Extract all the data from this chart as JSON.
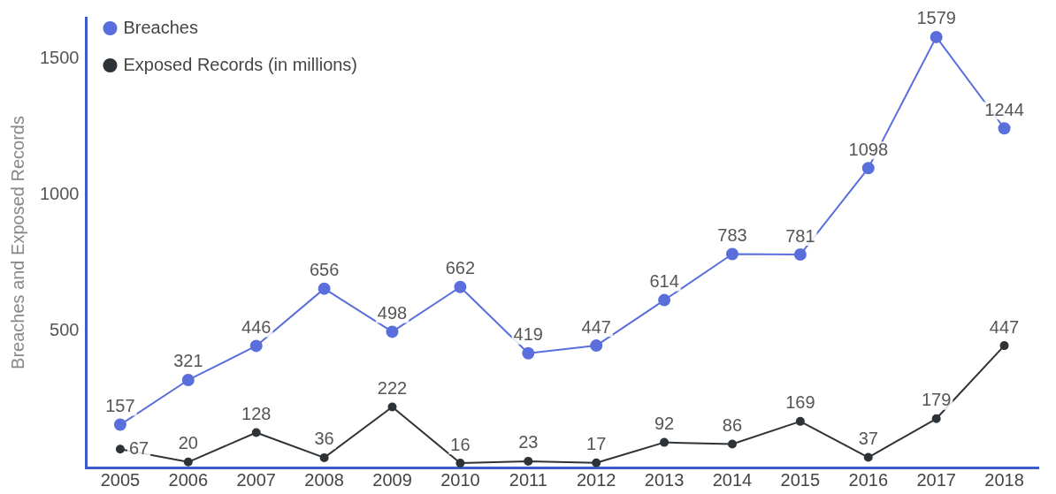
{
  "chart_data": {
    "type": "line",
    "ylabel": "Breaches and Exposed Records",
    "categories": [
      "2005",
      "2006",
      "2007",
      "2008",
      "2009",
      "2010",
      "2011",
      "2012",
      "2013",
      "2014",
      "2015",
      "2016",
      "2017",
      "2018"
    ],
    "series": [
      {
        "name": "Breaches",
        "color": "#5a6fdc",
        "values": [
          157,
          321,
          446,
          656,
          498,
          662,
          419,
          447,
          614,
          783,
          781,
          1098,
          1579,
          1244
        ]
      },
      {
        "name": "Exposed Records (in millions)",
        "color": "#2e3338",
        "values": [
          67,
          20,
          128,
          36,
          222,
          16,
          23,
          17,
          92,
          86,
          169,
          37,
          179,
          447
        ]
      }
    ],
    "ylim": [
      0,
      1650
    ],
    "yticks": [
      500,
      1000,
      1500
    ],
    "grid": false,
    "legend": "top left",
    "marker": "circle",
    "line_style": "solid",
    "data_labels": true
  }
}
